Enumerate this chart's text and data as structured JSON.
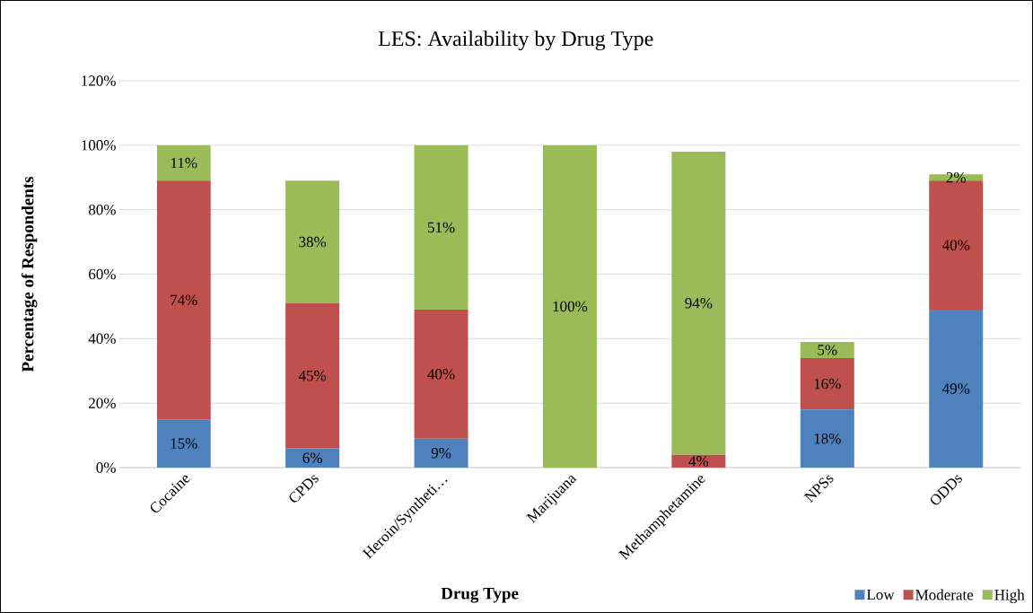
{
  "chart_data": {
    "type": "bar",
    "stacked": true,
    "title": "LES: Availability by Drug Type",
    "xlabel": "Drug Type",
    "ylabel": "Percentage of Respondents",
    "categories": [
      "Cocaine",
      "CPDs",
      "Heroin/Syntheti…",
      "Marijuana",
      "Methamphetamine",
      "NPSs",
      "ODDs"
    ],
    "series": [
      {
        "name": "Low",
        "color": "#4f81bd",
        "values": [
          15,
          6,
          9,
          0,
          0,
          18,
          49
        ],
        "value_labels": [
          "15%",
          "6%",
          "9%",
          null,
          null,
          "18%",
          "49%"
        ]
      },
      {
        "name": "Moderate",
        "color": "#c0504d",
        "values": [
          74,
          45,
          40,
          0,
          4,
          16,
          40
        ],
        "value_labels": [
          "74%",
          "45%",
          "40%",
          null,
          "4%",
          "16%",
          "40%"
        ]
      },
      {
        "name": "High",
        "color": "#9bbb59",
        "values": [
          11,
          38,
          51,
          100,
          94,
          5,
          2
        ],
        "value_labels": [
          "11%",
          "38%",
          "51%",
          "100%",
          "94%",
          "5%",
          "2%"
        ]
      }
    ],
    "ylim": [
      0,
      120
    ],
    "yticks": [
      {
        "value": 0,
        "label": "0%"
      },
      {
        "value": 20,
        "label": "20%"
      },
      {
        "value": 40,
        "label": "40%"
      },
      {
        "value": 60,
        "label": "60%"
      },
      {
        "value": 80,
        "label": "80%"
      },
      {
        "value": 100,
        "label": "100%"
      },
      {
        "value": 120,
        "label": "120%"
      }
    ],
    "grid": "y",
    "legend": "bottom right"
  }
}
